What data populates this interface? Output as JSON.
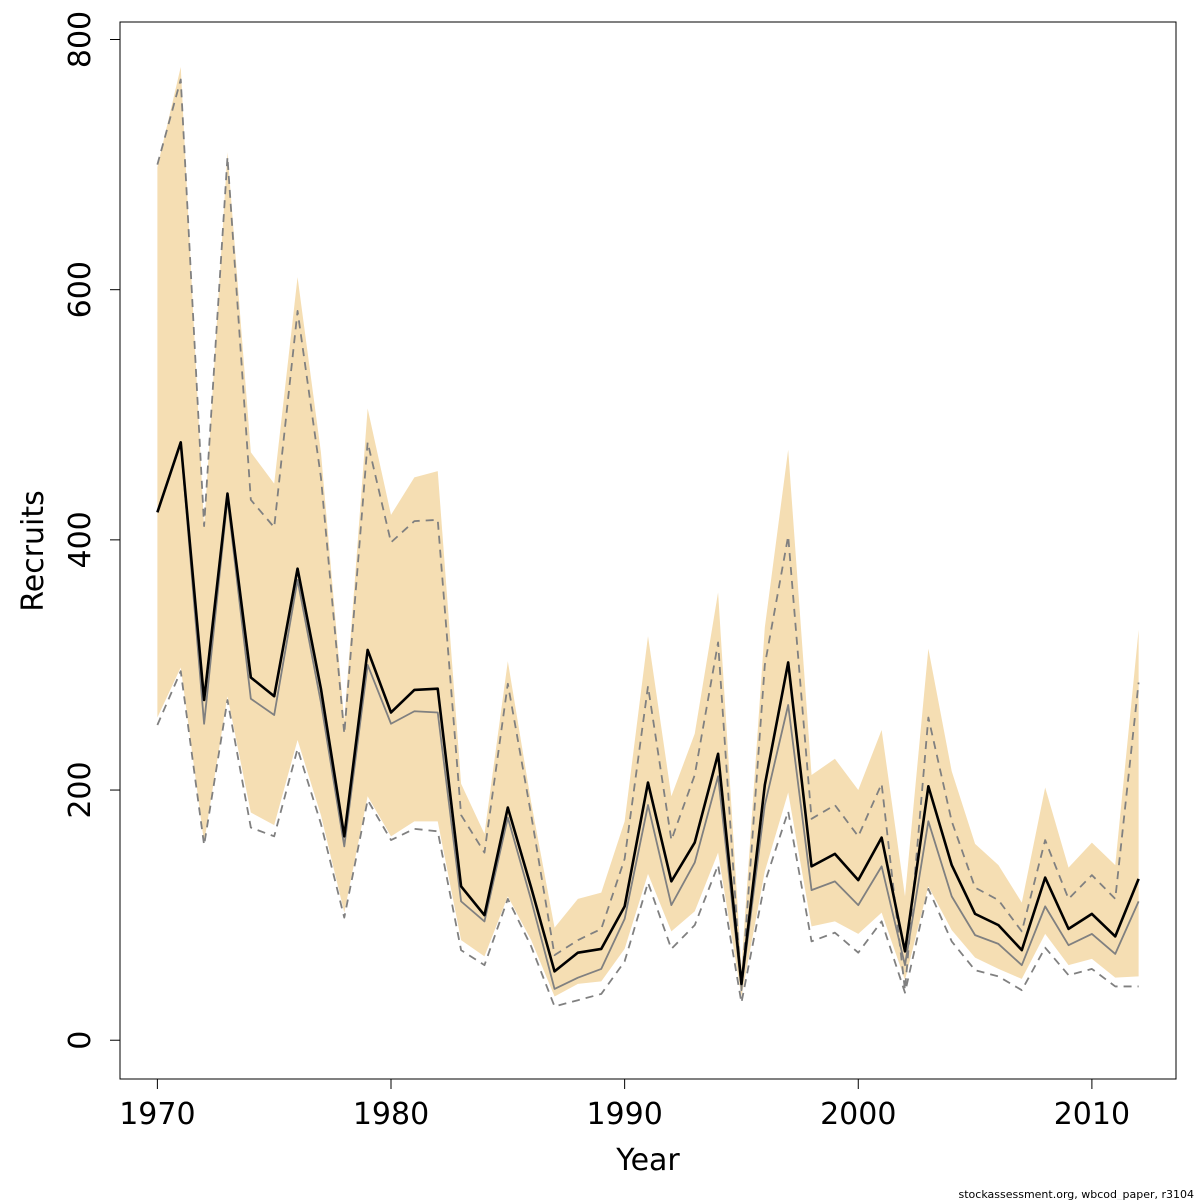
{
  "chart_data": {
    "type": "line",
    "xlabel": "Year",
    "ylabel": "Recruits",
    "xlim": [
      1968.4,
      2013.6
    ],
    "ylim": [
      -31,
      814
    ],
    "x_ticks": [
      1970,
      1980,
      1990,
      2000,
      2010
    ],
    "y_ticks": [
      0,
      200,
      400,
      600,
      800
    ],
    "x": [
      1970,
      1971,
      1972,
      1973,
      1974,
      1975,
      1976,
      1977,
      1978,
      1979,
      1980,
      1981,
      1982,
      1983,
      1984,
      1985,
      1986,
      1987,
      1988,
      1989,
      1990,
      1991,
      1992,
      1993,
      1994,
      1995,
      1996,
      1997,
      1998,
      1999,
      2000,
      2001,
      2002,
      2003,
      2004,
      2005,
      2006,
      2007,
      2008,
      2009,
      2010,
      2011,
      2012
    ],
    "band": {
      "color": "#f5deb3",
      "upper": [
        698,
        778,
        410,
        710,
        470,
        445,
        610,
        470,
        255,
        505,
        420,
        450,
        455,
        205,
        165,
        303,
        190,
        90,
        113,
        118,
        175,
        323,
        195,
        245,
        358,
        58,
        330,
        472,
        212,
        225,
        200,
        248,
        115,
        313,
        215,
        157,
        140,
        110,
        202,
        138,
        158,
        140,
        328
      ],
      "lower": [
        258,
        298,
        158,
        275,
        182,
        172,
        240,
        180,
        102,
        195,
        163,
        175,
        175,
        80,
        67,
        115,
        80,
        35,
        45,
        47,
        73,
        133,
        87,
        103,
        150,
        35,
        135,
        198,
        91,
        95,
        85,
        102,
        48,
        123,
        88,
        66,
        57,
        49,
        85,
        60,
        65,
        50,
        51
      ]
    },
    "series": [
      {
        "style": "solid-black",
        "values": [
          422,
          478,
          272,
          437,
          290,
          275,
          377,
          281,
          163,
          312,
          262,
          280,
          281,
          123,
          100,
          186,
          122,
          55,
          70,
          73,
          107,
          206,
          127,
          158,
          229,
          45,
          204,
          302,
          139,
          149,
          128,
          162,
          71,
          203,
          140,
          101,
          92,
          72,
          130,
          89,
          101,
          83,
          129
        ]
      },
      {
        "style": "solid-gray",
        "values": [
          422,
          478,
          253,
          433,
          273,
          260,
          368,
          270,
          155,
          300,
          253,
          263,
          262,
          111,
          95,
          178,
          112,
          41,
          50,
          57,
          97,
          188,
          108,
          142,
          211,
          42,
          188,
          268,
          120,
          127,
          108,
          139,
          60,
          175,
          115,
          84,
          77,
          60,
          107,
          76,
          85,
          69,
          111
        ]
      },
      {
        "style": "dashed-gray",
        "values": [
          700,
          768,
          411,
          706,
          432,
          410,
          583,
          450,
          245,
          478,
          398,
          415,
          416,
          180,
          150,
          285,
          180,
          68,
          80,
          89,
          145,
          283,
          160,
          212,
          318,
          40,
          300,
          403,
          177,
          188,
          163,
          205,
          40,
          258,
          175,
          122,
          112,
          87,
          160,
          113,
          132,
          113,
          286
        ]
      },
      {
        "style": "dashed-gray",
        "values": [
          252,
          295,
          156,
          272,
          170,
          163,
          233,
          173,
          98,
          192,
          160,
          169,
          167,
          72,
          60,
          113,
          75,
          27,
          32,
          37,
          63,
          126,
          73,
          92,
          140,
          30,
          126,
          183,
          79,
          86,
          70,
          95,
          38,
          121,
          79,
          56,
          51,
          40,
          74,
          52,
          57,
          43,
          43
        ]
      }
    ],
    "colors": {
      "band": "#f5deb3",
      "main_line": "#000000",
      "secondary_line": "#808080"
    }
  },
  "footer": "stockassessment.org, wbcod_paper, r3104"
}
